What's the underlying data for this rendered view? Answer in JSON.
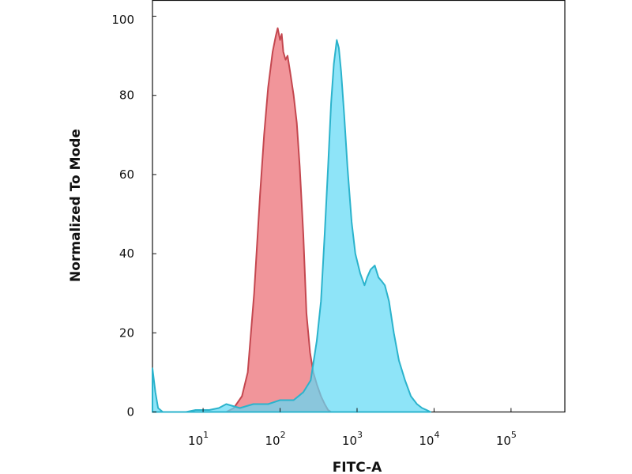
{
  "chart_data": {
    "type": "area",
    "title": "",
    "xlabel": "FITC-A",
    "ylabel": "Normalized To Mode",
    "x_scale": "log",
    "xlim": [
      2.2,
      500000
    ],
    "ylim": [
      0,
      104
    ],
    "x_ticks": [
      {
        "value": 10,
        "base": "10",
        "exp": "1"
      },
      {
        "value": 100,
        "base": "10",
        "exp": "2"
      },
      {
        "value": 1000,
        "base": "10",
        "exp": "3"
      },
      {
        "value": 10000,
        "base": "10",
        "exp": "4"
      },
      {
        "value": 100000,
        "base": "10",
        "exp": "5"
      }
    ],
    "y_ticks": [
      "0",
      "20",
      "40",
      "60",
      "80",
      "100"
    ],
    "grid": false,
    "legend": "none",
    "series": [
      {
        "color": "#c4474f",
        "fill": "#f08a8f",
        "points": [
          [
            2.2,
            0
          ],
          [
            20,
            0
          ],
          [
            25,
            1
          ],
          [
            32,
            4
          ],
          [
            38,
            10
          ],
          [
            46,
            30
          ],
          [
            55,
            55
          ],
          [
            62,
            70
          ],
          [
            70,
            82
          ],
          [
            80,
            91
          ],
          [
            88,
            95
          ],
          [
            93,
            97
          ],
          [
            100,
            94
          ],
          [
            105,
            95.5
          ],
          [
            110,
            91
          ],
          [
            118,
            89
          ],
          [
            125,
            90
          ],
          [
            135,
            86
          ],
          [
            150,
            80
          ],
          [
            165,
            73
          ],
          [
            180,
            62
          ],
          [
            200,
            45
          ],
          [
            220,
            25
          ],
          [
            245,
            15
          ],
          [
            270,
            10
          ],
          [
            300,
            7
          ],
          [
            340,
            4
          ],
          [
            380,
            2
          ],
          [
            420,
            0.5
          ],
          [
            460,
            0
          ]
        ]
      },
      {
        "color": "#2bb3cc",
        "fill": "#62daf5",
        "points": [
          [
            2.2,
            11
          ],
          [
            2.4,
            5
          ],
          [
            2.6,
            1
          ],
          [
            3,
            0
          ],
          [
            6,
            0
          ],
          [
            8,
            0.5
          ],
          [
            12,
            0.5
          ],
          [
            16,
            1
          ],
          [
            20,
            2
          ],
          [
            30,
            1
          ],
          [
            45,
            2
          ],
          [
            70,
            2
          ],
          [
            100,
            3
          ],
          [
            150,
            3
          ],
          [
            200,
            5
          ],
          [
            250,
            8
          ],
          [
            300,
            18
          ],
          [
            340,
            28
          ],
          [
            380,
            45
          ],
          [
            420,
            62
          ],
          [
            460,
            78
          ],
          [
            500,
            88
          ],
          [
            545,
            94
          ],
          [
            580,
            92
          ],
          [
            620,
            86
          ],
          [
            680,
            75
          ],
          [
            750,
            62
          ],
          [
            850,
            48
          ],
          [
            950,
            40
          ],
          [
            1100,
            35
          ],
          [
            1250,
            32
          ],
          [
            1350,
            34
          ],
          [
            1500,
            36
          ],
          [
            1700,
            37
          ],
          [
            1900,
            34
          ],
          [
            2100,
            33
          ],
          [
            2300,
            32
          ],
          [
            2600,
            28
          ],
          [
            3000,
            20
          ],
          [
            3500,
            13
          ],
          [
            4200,
            8
          ],
          [
            5000,
            4
          ],
          [
            6000,
            2
          ],
          [
            7000,
            1
          ],
          [
            8000,
            0.5
          ],
          [
            9000,
            0
          ]
        ]
      }
    ]
  }
}
